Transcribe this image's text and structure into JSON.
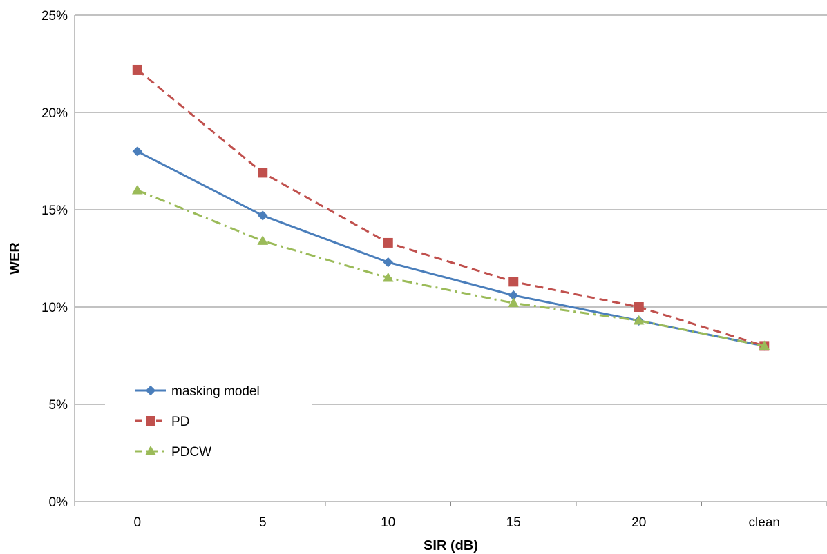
{
  "chart_data": {
    "type": "line",
    "title": "",
    "xlabel": "SIR (dB)",
    "ylabel": "WER",
    "categories": [
      "0",
      "5",
      "10",
      "15",
      "20",
      "clean"
    ],
    "y_ticks": [
      "0%",
      "5%",
      "10%",
      "15%",
      "20%",
      "25%"
    ],
    "ylim": [
      0,
      0.25
    ],
    "grid": "horizontal",
    "legend_position": "bottom-left",
    "series": [
      {
        "name": "masking model",
        "values": [
          0.18,
          0.147,
          0.123,
          0.106,
          0.093,
          0.08
        ],
        "color": "#4a7ebb",
        "marker": "diamond",
        "dash": "solid"
      },
      {
        "name": "PD",
        "values": [
          0.222,
          0.169,
          0.133,
          0.113,
          0.1,
          0.08
        ],
        "color": "#c0504d",
        "marker": "square",
        "dash": "dashed"
      },
      {
        "name": "PDCW",
        "values": [
          0.16,
          0.134,
          0.115,
          0.102,
          0.093,
          0.08
        ],
        "color": "#9bbb59",
        "marker": "triangle",
        "dash": "dashdot"
      }
    ]
  }
}
